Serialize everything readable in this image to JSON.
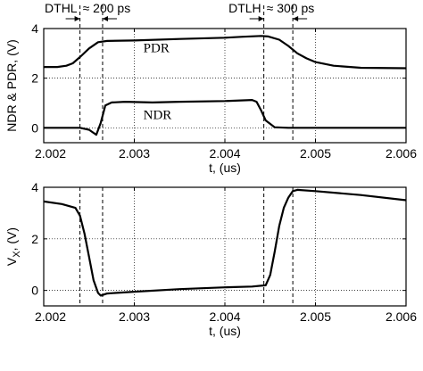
{
  "chart_data": [
    {
      "type": "line",
      "xlabel": "t, (us)",
      "ylabel": "NDR & PDR, (V)",
      "xlim": [
        2.002,
        2.006
      ],
      "ylim": [
        -0.6,
        4
      ],
      "xticks": [
        "2.002",
        "2.003",
        "2.004",
        "2.005",
        "2.006"
      ],
      "yticks": [
        "0",
        "2",
        "4"
      ],
      "grid": true,
      "series": [
        {
          "name": "PDR",
          "x": [
            2.002,
            2.00215,
            2.00225,
            2.00232,
            2.0024,
            2.0025,
            2.0026,
            2.0027,
            2.003,
            2.0035,
            2.004,
            2.0042,
            2.0044,
            2.00448,
            2.0046,
            2.0047,
            2.0048,
            2.0049,
            2.005,
            2.0052,
            2.0055,
            2.006
          ],
          "y": [
            2.45,
            2.45,
            2.5,
            2.6,
            2.85,
            3.2,
            3.45,
            3.5,
            3.52,
            3.58,
            3.63,
            3.67,
            3.7,
            3.68,
            3.55,
            3.3,
            3.0,
            2.8,
            2.65,
            2.5,
            2.42,
            2.4
          ]
        },
        {
          "name": "NDR",
          "x": [
            2.002,
            2.0024,
            2.0025,
            2.00258,
            2.00263,
            2.00268,
            2.00275,
            2.0029,
            2.0032,
            2.0035,
            2.004,
            2.0043,
            2.00435,
            2.0044,
            2.00445,
            2.00455,
            2.0047,
            2.006
          ],
          "y": [
            0,
            0,
            -0.08,
            -0.28,
            0.2,
            0.9,
            1.02,
            1.05,
            1.02,
            1.05,
            1.08,
            1.12,
            1.05,
            0.7,
            0.3,
            0.02,
            0,
            0
          ]
        }
      ],
      "vlines": [
        2.0024,
        2.00265,
        2.00443,
        2.00475
      ],
      "annotations": [
        {
          "text": "DTHL ≈ 200 ps",
          "x": [
            2.0024,
            2.00265
          ]
        },
        {
          "text": "DTLH ≈ 300 ps",
          "x": [
            2.00443,
            2.00475
          ]
        }
      ]
    },
    {
      "type": "line",
      "xlabel": "t, (us)",
      "ylabel_main": "V",
      "ylabel_sub": "X",
      "ylabel_unit": ", (V)",
      "xlim": [
        2.002,
        2.006
      ],
      "ylim": [
        -0.6,
        4
      ],
      "xticks": [
        "2.002",
        "2.003",
        "2.004",
        "2.005",
        "2.006"
      ],
      "yticks": [
        "0",
        "2",
        "4"
      ],
      "grid": true,
      "series": [
        {
          "name": "",
          "x": [
            2.002,
            2.0022,
            2.00235,
            2.0024,
            2.00245,
            2.0025,
            2.00255,
            2.0026,
            2.00263,
            2.0027,
            2.003,
            2.0035,
            2.004,
            2.0043,
            2.00445,
            2.0045,
            2.00455,
            2.0046,
            2.00465,
            2.0047,
            2.00475,
            2.0048,
            2.005,
            2.0055,
            2.006
          ],
          "y": [
            3.45,
            3.35,
            3.2,
            2.9,
            2.2,
            1.3,
            0.4,
            -0.1,
            -0.2,
            -0.12,
            -0.05,
            0.05,
            0.12,
            0.15,
            0.2,
            0.6,
            1.5,
            2.5,
            3.2,
            3.6,
            3.85,
            3.9,
            3.85,
            3.7,
            3.5
          ]
        }
      ],
      "vlines": [
        2.0024,
        2.00265,
        2.00443,
        2.00475
      ]
    }
  ]
}
